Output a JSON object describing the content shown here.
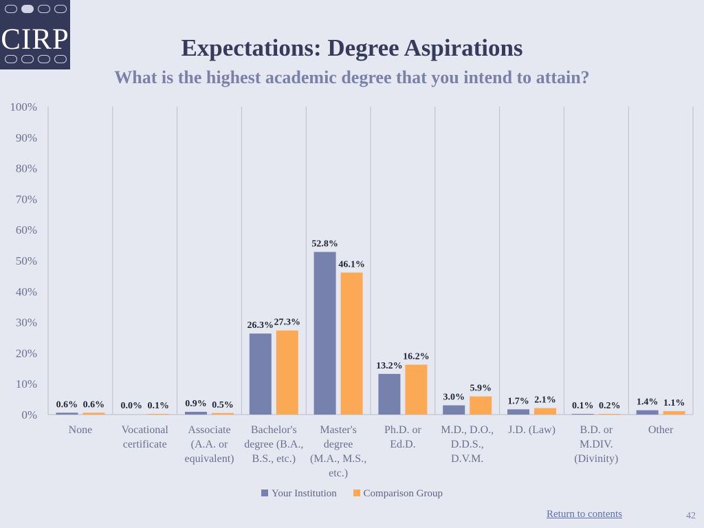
{
  "header": {
    "logo_text": "CIRP",
    "title": "Expectations: Degree Aspirations",
    "subtitle": "What is the highest academic degree that you intend to attain?"
  },
  "colors": {
    "your_institution": "#7681ad",
    "comparison_group": "#fca956",
    "axis_text": "#6a7090",
    "grid": "#b7bbcc"
  },
  "chart_data": {
    "type": "bar",
    "title": "Expectations: Degree Aspirations",
    "subtitle": "What is the highest academic degree that you intend to attain?",
    "categories": [
      "None",
      "Vocational certificate",
      "Associate (A.A. or equivalent)",
      "Bachelor's degree (B.A., B.S., etc.)",
      "Master's degree (M.A., M.S., etc.)",
      "Ph.D. or Ed.D.",
      "M.D., D.O., D.D.S., D.V.M.",
      "J.D. (Law)",
      "B.D. or M.DIV. (Divinity)",
      "Other"
    ],
    "category_lines": [
      [
        "None"
      ],
      [
        "Vocational",
        "certificate"
      ],
      [
        "Associate",
        "(A.A. or",
        "equivalent)"
      ],
      [
        "Bachelor's",
        "degree (B.A.,",
        "B.S., etc.)"
      ],
      [
        "Master's",
        "degree",
        "(M.A., M.S.,",
        "etc.)"
      ],
      [
        "Ph.D. or",
        "Ed.D."
      ],
      [
        "M.D., D.O.,",
        "D.D.S.,",
        "D.V.M."
      ],
      [
        "J.D. (Law)"
      ],
      [
        "B.D. or",
        "M.DIV.",
        "(Divinity)"
      ],
      [
        "Other"
      ]
    ],
    "series": [
      {
        "name": "Your Institution",
        "values": [
          0.6,
          0.0,
          0.9,
          26.3,
          52.8,
          13.2,
          3.0,
          1.7,
          0.1,
          1.4
        ],
        "labels": [
          "0.6%",
          "0.0%",
          "0.9%",
          "26.3%",
          "52.8%",
          "13.2%",
          "3.0%",
          "1.7%",
          "0.1%",
          "1.4%"
        ]
      },
      {
        "name": "Comparison Group",
        "values": [
          0.6,
          0.1,
          0.5,
          27.3,
          46.1,
          16.2,
          5.9,
          2.1,
          0.2,
          1.1
        ],
        "labels": [
          "0.6%",
          "0.1%",
          "0.5%",
          "27.3%",
          "46.1%",
          "16.2%",
          "5.9%",
          "2.1%",
          "0.2%",
          "1.1%"
        ]
      }
    ],
    "ylim": [
      0,
      100
    ],
    "yticks": [
      "0%",
      "10%",
      "20%",
      "30%",
      "40%",
      "50%",
      "60%",
      "70%",
      "80%",
      "90%",
      "100%"
    ],
    "grid": "vertical category separators",
    "legend_position": "bottom"
  },
  "legend": {
    "items": [
      "Your Institution",
      "Comparison Group"
    ]
  },
  "footer": {
    "return_link": "Return to contents",
    "page_number": "42"
  }
}
